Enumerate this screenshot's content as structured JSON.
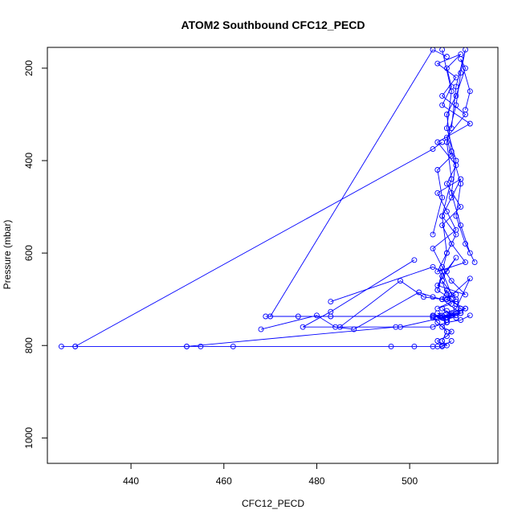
{
  "chart_data": {
    "type": "line",
    "title": "ATOM2 Southbound CFC12_PECD",
    "xlabel": "CFC12_PECD",
    "ylabel": "Pressure (mbar)",
    "xlim": [
      422,
      519
    ],
    "ylim": [
      1055,
      155
    ],
    "y_reversed": true,
    "x_ticks": [
      "440",
      "460",
      "480",
      "500"
    ],
    "y_ticks": [
      "200",
      "400",
      "600",
      "800",
      "1000"
    ],
    "grid": false,
    "legend": "none",
    "marker": "open-circle",
    "line_color": "#0000ff",
    "series": [
      {
        "x": [
          505,
          507,
          506,
          509,
          508,
          512,
          507,
          510,
          506,
          511,
          508,
          509,
          507,
          513,
          506,
          510,
          508,
          511,
          507,
          509,
          512,
          506,
          508,
          510,
          507,
          509,
          511,
          506,
          508,
          510,
          505,
          507,
          509,
          512,
          506,
          508,
          510,
          507,
          506,
          509,
          511,
          508,
          507,
          510,
          506,
          509,
          508,
          507,
          511,
          506,
          508,
          509,
          507,
          510,
          506,
          508,
          505,
          507,
          509,
          508,
          506,
          510,
          507,
          511,
          508,
          506,
          509,
          507,
          508,
          510,
          506,
          508,
          507,
          509,
          508,
          506,
          507,
          508,
          507,
          508,
          506,
          505,
          507,
          508
        ],
        "y": [
          560,
          480,
          420,
          390,
          350,
          300,
          260,
          220,
          190,
          170,
          200,
          240,
          280,
          320,
          360,
          410,
          450,
          500,
          540,
          580,
          620,
          640,
          600,
          560,
          520,
          480,
          440,
          470,
          510,
          550,
          590,
          630,
          660,
          690,
          670,
          640,
          610,
          650,
          680,
          700,
          720,
          690,
          660,
          700,
          720,
          710,
          680,
          700,
          730,
          740,
          725,
          735,
          720,
          740,
          730,
          745,
          735,
          740,
          730,
          745,
          740,
          735,
          740,
          730,
          745,
          740,
          735,
          740,
          745,
          730,
          740,
          750,
          760,
          770,
          780,
          790,
          800,
          800,
          790,
          770,
          750,
          740,
          735,
          740
        ]
      },
      {
        "x": [
          483,
          505,
          507,
          509,
          508,
          510,
          512,
          509
        ],
        "y": [
          705,
          630,
          640,
          690,
          700,
          710,
          720,
          730
        ]
      },
      {
        "x": [
          501,
          483,
          477,
          498,
          507,
          510,
          513,
          508
        ],
        "y": [
          615,
          727,
          760,
          760,
          740,
          720,
          655,
          700
        ]
      },
      {
        "x": [
          469,
          476,
          483,
          505,
          509,
          511,
          508,
          512
        ],
        "y": [
          737,
          737,
          737,
          737,
          735,
          725,
          740,
          720
        ]
      },
      {
        "x": [
          468,
          480,
          484,
          488,
          502,
          505,
          507,
          510
        ],
        "y": [
          765,
          735,
          760,
          765,
          685,
          695,
          700,
          705
        ]
      },
      {
        "x": [
          425,
          428,
          452,
          455,
          462,
          496,
          501,
          505,
          506,
          507,
          509
        ],
        "y": [
          802,
          802,
          802,
          802,
          802,
          802,
          802,
          802,
          802,
          802,
          790
        ]
      },
      {
        "x": [
          428,
          505,
          507
        ],
        "y": [
          802,
          375,
          360
        ]
      },
      {
        "x": [
          470,
          505,
          508
        ],
        "y": [
          737,
          160,
          175
        ]
      },
      {
        "x": [
          485,
          498,
          503,
          507,
          510
        ],
        "y": [
          760,
          660,
          695,
          700,
          690
        ]
      },
      {
        "x": [
          452,
          497,
          505,
          508,
          511,
          513
        ],
        "y": [
          802,
          760,
          760,
          750,
          745,
          735
        ]
      },
      {
        "x": [
          507,
          509,
          508,
          510,
          509,
          511,
          513,
          514,
          512,
          510,
          511,
          509,
          508,
          510,
          512,
          511,
          513,
          512
        ],
        "y": [
          160,
          250,
          330,
          400,
          470,
          540,
          600,
          620,
          580,
          520,
          450,
          380,
          300,
          260,
          200,
          180,
          250,
          290
        ]
      },
      {
        "x": [
          506,
          508,
          507,
          509,
          508,
          510,
          511,
          512,
          510,
          509
        ],
        "y": [
          680,
          600,
          520,
          440,
          360,
          280,
          210,
          160,
          240,
          330
        ]
      }
    ]
  }
}
